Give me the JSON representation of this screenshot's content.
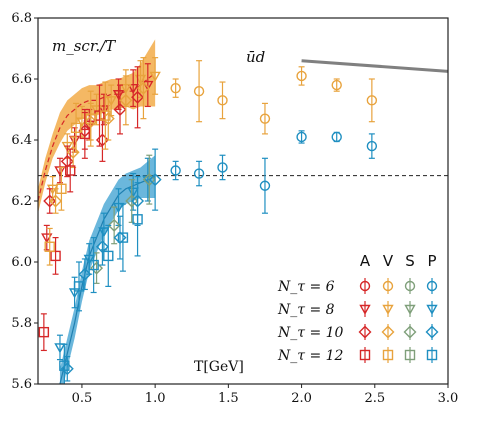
{
  "chart_data": {
    "type": "scatter",
    "annotations": {
      "ylabel": "m_scr./T",
      "channel": "ūd",
      "xlabel": "T[GeV]"
    },
    "xlim": [
      0.2,
      3.0
    ],
    "ylim": [
      5.6,
      6.8
    ],
    "x_ticks": [
      "0.5",
      "1.0",
      "1.5",
      "2.0",
      "2.5",
      "3.0"
    ],
    "x_tick_values": [
      0.5,
      1.0,
      1.5,
      2.0,
      2.5,
      3.0
    ],
    "y_ticks": [
      "5.6",
      "5.8",
      "6.0",
      "6.2",
      "6.4",
      "6.6",
      "6.8"
    ],
    "y_tick_values": [
      5.6,
      5.8,
      6.0,
      6.2,
      6.4,
      6.6,
      6.8
    ],
    "reference_line": {
      "y": 6.283,
      "style": "dashed"
    },
    "free_theory_line": {
      "x": [
        2.0,
        3.0
      ],
      "y": [
        6.66,
        6.625
      ],
      "color": "#808080"
    },
    "legend": {
      "columns": [
        "A",
        "V",
        "S",
        "P"
      ],
      "rows": [
        "N_τ = 6",
        "N_τ = 8",
        "N_τ = 10",
        "N_τ = 12"
      ],
      "row_markers": [
        "circle",
        "triangle-down",
        "diamond",
        "square"
      ],
      "column_colors": [
        "#d62728",
        "#e8a33d",
        "#7f9f7a",
        "#1f8fc1"
      ]
    },
    "bands": [
      {
        "name": "V/A continuum",
        "color": "#f0a030",
        "x": [
          0.2,
          0.25,
          0.3,
          0.35,
          0.4,
          0.45,
          0.5,
          0.55,
          0.6,
          0.65,
          0.7,
          0.75,
          0.8,
          0.85,
          0.9,
          0.95,
          1.0
        ],
        "y": [
          6.2,
          6.3,
          6.38,
          6.44,
          6.48,
          6.5,
          6.52,
          6.53,
          6.53,
          6.54,
          6.55,
          6.55,
          6.56,
          6.56,
          6.58,
          6.6,
          6.62
        ],
        "half_width": [
          0.04,
          0.04,
          0.04,
          0.05,
          0.05,
          0.05,
          0.05,
          0.05,
          0.05,
          0.05,
          0.05,
          0.05,
          0.05,
          0.06,
          0.07,
          0.09,
          0.11
        ]
      },
      {
        "name": "S/P continuum",
        "color": "#3a9fd0",
        "x": [
          0.35,
          0.4,
          0.45,
          0.5,
          0.55,
          0.6,
          0.65,
          0.7,
          0.75,
          0.8,
          0.85,
          0.9,
          0.95,
          1.0
        ],
        "y": [
          5.6,
          5.7,
          5.8,
          5.92,
          6.02,
          6.08,
          6.14,
          6.18,
          6.22,
          6.24,
          6.25,
          6.26,
          6.27,
          6.28
        ],
        "half_width": [
          0.05,
          0.05,
          0.05,
          0.05,
          0.05,
          0.05,
          0.05,
          0.05,
          0.05,
          0.05,
          0.05,
          0.05,
          0.06,
          0.07
        ]
      }
    ],
    "series": [
      {
        "name": "V, N_τ = 6",
        "channel": "V",
        "marker": "circle",
        "color": "#e8a33d",
        "x": [
          1.14,
          1.3,
          1.46,
          1.75,
          2.0,
          2.24,
          2.48
        ],
        "y": [
          6.57,
          6.56,
          6.53,
          6.47,
          6.61,
          6.58,
          6.53
        ],
        "err": [
          0.03,
          0.1,
          0.06,
          0.05,
          0.03,
          0.02,
          0.07
        ]
      },
      {
        "name": "P, N_τ = 6",
        "channel": "P",
        "marker": "circle",
        "color": "#1f8fc1",
        "x": [
          1.14,
          1.3,
          1.46,
          1.75,
          2.0,
          2.24,
          2.48
        ],
        "y": [
          6.3,
          6.29,
          6.31,
          6.25,
          6.41,
          6.41,
          6.38
        ],
        "err": [
          0.03,
          0.04,
          0.04,
          0.09,
          0.02,
          0.015,
          0.04
        ]
      },
      {
        "name": "A, N_τ = 8",
        "channel": "A",
        "marker": "triangle-down",
        "color": "#d62728",
        "x": [
          0.26,
          0.35,
          0.45,
          0.55,
          0.65,
          0.75,
          0.85,
          0.95
        ],
        "y": [
          6.08,
          6.3,
          6.4,
          6.45,
          6.5,
          6.55,
          6.57,
          6.58
        ],
        "err": [
          0.04,
          0.04,
          0.04,
          0.05,
          0.05,
          0.05,
          0.06,
          0.07
        ]
      },
      {
        "name": "V, N_τ = 8",
        "channel": "V",
        "marker": "triangle-down",
        "color": "#e8a33d",
        "x": [
          0.3,
          0.4,
          0.5,
          0.6,
          0.7,
          0.8,
          0.9,
          1.0
        ],
        "y": [
          6.24,
          6.38,
          6.46,
          6.5,
          6.53,
          6.57,
          6.6,
          6.61
        ],
        "err": [
          0.04,
          0.04,
          0.05,
          0.05,
          0.05,
          0.06,
          0.06,
          0.06
        ]
      },
      {
        "name": "P, N_τ = 8",
        "channel": "P",
        "marker": "triangle-down",
        "color": "#1f8fc1",
        "x": [
          0.35,
          0.45,
          0.55,
          0.65,
          0.75,
          0.85,
          0.95
        ],
        "y": [
          5.72,
          5.9,
          6.01,
          6.1,
          6.18,
          6.23,
          6.27
        ],
        "err": [
          0.04,
          0.05,
          0.05,
          0.06,
          0.06,
          0.06,
          0.07
        ]
      },
      {
        "name": "A, N_τ = 10",
        "channel": "A",
        "marker": "diamond",
        "color": "#d62728",
        "x": [
          0.28,
          0.4,
          0.52,
          0.64,
          0.76,
          0.88
        ],
        "y": [
          6.2,
          6.33,
          6.43,
          6.4,
          6.5,
          6.54
        ],
        "err": [
          0.04,
          0.05,
          0.06,
          0.07,
          0.08,
          0.1
        ]
      },
      {
        "name": "V, N_τ = 10",
        "channel": "V",
        "marker": "diamond",
        "color": "#e8a33d",
        "x": [
          0.32,
          0.44,
          0.56,
          0.68,
          0.8,
          0.92
        ],
        "y": [
          6.2,
          6.36,
          6.46,
          6.47,
          6.53,
          6.57
        ],
        "err": [
          0.04,
          0.05,
          0.06,
          0.07,
          0.08,
          0.1
        ]
      },
      {
        "name": "S, N_τ = 10",
        "channel": "S",
        "marker": "diamond",
        "color": "#7f9f7a",
        "x": [
          0.6,
          0.72,
          0.84,
          0.96
        ],
        "y": [
          5.98,
          6.12,
          6.2,
          6.27
        ],
        "err": [
          0.05,
          0.06,
          0.07,
          0.08
        ]
      },
      {
        "name": "P, N_τ = 10",
        "channel": "P",
        "marker": "diamond",
        "color": "#1f8fc1",
        "x": [
          0.4,
          0.52,
          0.64,
          0.76,
          0.88,
          1.0
        ],
        "y": [
          5.65,
          5.96,
          6.05,
          6.08,
          6.2,
          6.27
        ],
        "err": [
          0.04,
          0.05,
          0.06,
          0.07,
          0.08,
          0.1
        ]
      },
      {
        "name": "A, N_τ = 12",
        "channel": "A",
        "marker": "square",
        "color": "#d62728",
        "x": [
          0.24,
          0.32,
          0.42,
          0.52,
          0.62
        ],
        "y": [
          5.77,
          6.02,
          6.3,
          6.42,
          6.48
        ],
        "err": [
          0.06,
          0.06,
          0.07,
          0.08,
          0.1
        ]
      },
      {
        "name": "V, N_τ = 12",
        "channel": "V",
        "marker": "square",
        "color": "#e8a33d",
        "x": [
          0.28,
          0.36,
          0.46,
          0.56,
          0.66
        ],
        "y": [
          6.05,
          6.24,
          6.44,
          6.47,
          6.48
        ],
        "err": [
          0.06,
          0.07,
          0.08,
          0.09,
          0.11
        ]
      },
      {
        "name": "P, N_τ = 12",
        "channel": "P",
        "marker": "square",
        "color": "#1f8fc1",
        "x": [
          0.38,
          0.48,
          0.58,
          0.68,
          0.78,
          0.88
        ],
        "y": [
          5.66,
          5.92,
          5.99,
          6.02,
          6.08,
          6.14
        ],
        "err": [
          0.07,
          0.08,
          0.09,
          0.1,
          0.11,
          0.12
        ]
      }
    ]
  }
}
